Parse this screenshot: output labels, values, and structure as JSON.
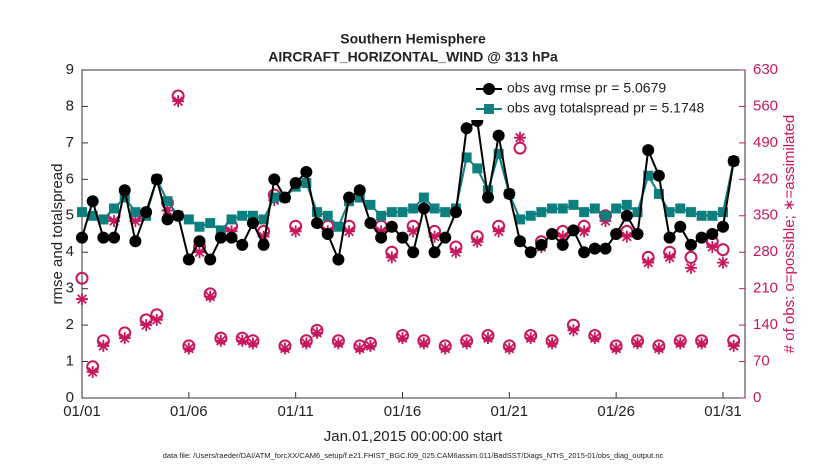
{
  "chart_data": {
    "type": "line",
    "title": [
      "Southern Hemisphere",
      "AIRCRAFT_HORIZONTAL_WIND @ 313 hPa"
    ],
    "ylabel": "rmse and totalspread",
    "y2label": "# of obs: o=possible; ∗=assimilated",
    "xlabel": "Jan.01,2015 00:00:00 start",
    "footnote": "data file: /Users/raeder/DAI/ATM_forcXX/CAM6_setup/f.e21.FHIST_BGC.f09_025.CAM6assim.011/BadSST/Diags_NTrS_2015-01/obs_diag_output.nc",
    "x": [
      0,
      0.5,
      1,
      1.5,
      2,
      2.5,
      3,
      3.5,
      4,
      4.5,
      5,
      5.5,
      6,
      6.5,
      7,
      7.5,
      8,
      8.5,
      9,
      9.5,
      10,
      10.5,
      11,
      11.5,
      12,
      12.5,
      13,
      13.5,
      14,
      14.5,
      15,
      15.5,
      16,
      16.5,
      17,
      17.5,
      18,
      18.5,
      19,
      19.5,
      20,
      20.5,
      21,
      21.5,
      22,
      22.5,
      23,
      23.5,
      24,
      24.5,
      25,
      25.5,
      26,
      26.5,
      27,
      27.5,
      28,
      28.5,
      29,
      29.5,
      30,
      30.5
    ],
    "xlim": [
      0,
      31.03
    ],
    "xticks": [
      {
        "value": 0,
        "label": "01/01"
      },
      {
        "value": 5,
        "label": "01/06"
      },
      {
        "value": 10,
        "label": "01/11"
      },
      {
        "value": 15,
        "label": "01/16"
      },
      {
        "value": 20,
        "label": "01/21"
      },
      {
        "value": 25,
        "label": "01/26"
      },
      {
        "value": 30,
        "label": "01/31"
      }
    ],
    "ylim": [
      0,
      9
    ],
    "yticks": [
      0,
      1,
      2,
      3,
      4,
      5,
      6,
      7,
      8,
      9
    ],
    "y2lim": [
      0,
      630
    ],
    "y2ticks": [
      0,
      70,
      140,
      210,
      280,
      350,
      420,
      490,
      560,
      630
    ],
    "series": [
      {
        "name": "obs avg rmse pr = 5.0679",
        "color": "#000000",
        "marker": "circle",
        "values": [
          4.4,
          5.4,
          4.4,
          4.4,
          5.7,
          4.3,
          5.1,
          6.0,
          4.9,
          5.0,
          3.8,
          4.3,
          3.8,
          4.4,
          4.4,
          4.2,
          4.8,
          4.2,
          6.0,
          5.5,
          5.9,
          6.2,
          4.8,
          4.5,
          3.8,
          5.5,
          5.7,
          4.8,
          4.4,
          4.7,
          4.4,
          4.0,
          5.2,
          4.0,
          4.4,
          5.1,
          7.4,
          7.6,
          5.5,
          7.2,
          5.6,
          4.3,
          4.0,
          4.2,
          4.5,
          4.2,
          4.6,
          4.0,
          4.1,
          4.1,
          4.5,
          5.0,
          4.5,
          6.8,
          6.1,
          4.4,
          4.7,
          4.2,
          4.4,
          4.5,
          4.7,
          6.5
        ]
      },
      {
        "name": "obs avg totalspread pr = 5.1748",
        "color": "#0e7f7f",
        "marker": "square",
        "values": [
          5.1,
          5.0,
          4.9,
          5.2,
          5.5,
          5.1,
          5.0,
          6.0,
          5.4,
          5.0,
          4.9,
          4.7,
          4.8,
          4.6,
          4.9,
          5.0,
          5.0,
          4.9,
          5.5,
          5.5,
          5.8,
          5.9,
          5.1,
          5.0,
          4.7,
          5.4,
          5.5,
          5.3,
          5.0,
          5.1,
          5.1,
          5.2,
          5.5,
          5.2,
          5.1,
          5.2,
          6.6,
          6.3,
          5.7,
          6.7,
          5.6,
          4.9,
          5.0,
          5.1,
          5.2,
          5.2,
          5.3,
          5.1,
          5.2,
          5.0,
          5.2,
          5.3,
          5.1,
          6.1,
          5.6,
          5.1,
          5.2,
          5.1,
          5.0,
          5.0,
          5.1,
          6.5
        ]
      },
      {
        "color": "#c8175d",
        "marker": "open-circle",
        "axis": "y2",
        "values": [
          230,
          60,
          110,
          350,
          125,
          350,
          150,
          160,
          375,
          580,
          100,
          290,
          200,
          115,
          330,
          115,
          110,
          320,
          390,
          100,
          330,
          110,
          130,
          330,
          110,
          330,
          100,
          105,
          330,
          280,
          120,
          330,
          110,
          320,
          100,
          290,
          110,
          310,
          120,
          330,
          100,
          480,
          120,
          300,
          110,
          320,
          140,
          330,
          120,
          350,
          100,
          320,
          110,
          270,
          100,
          280,
          110,
          270,
          110,
          300,
          285,
          110
        ]
      },
      {
        "color": "#c8175d",
        "marker": "asterisk",
        "axis": "y2",
        "values": [
          190,
          50,
          100,
          340,
          115,
          340,
          140,
          150,
          360,
          570,
          95,
          280,
          195,
          110,
          320,
          110,
          105,
          310,
          380,
          95,
          320,
          105,
          125,
          320,
          105,
          320,
          95,
          100,
          320,
          270,
          115,
          320,
          105,
          310,
          95,
          280,
          105,
          300,
          115,
          320,
          95,
          500,
          115,
          290,
          105,
          310,
          130,
          320,
          115,
          340,
          95,
          310,
          105,
          260,
          95,
          270,
          105,
          250,
          105,
          290,
          260,
          100
        ]
      }
    ]
  }
}
